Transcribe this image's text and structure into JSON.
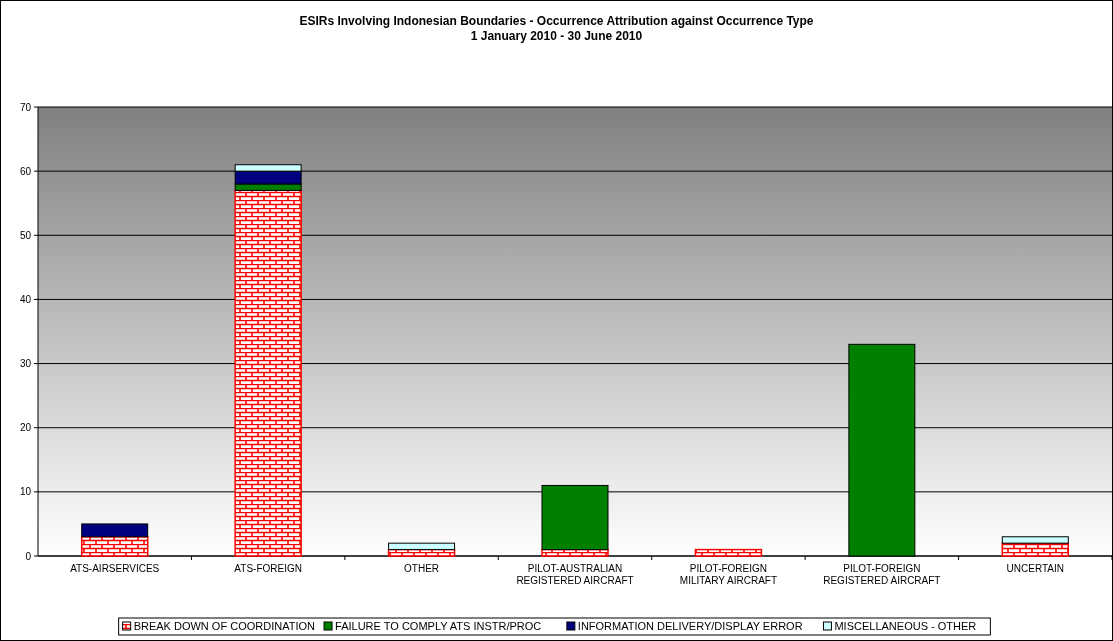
{
  "chart_data": {
    "type": "bar",
    "stacked": true,
    "title": "ESIRs Involving Indonesian Boundaries - Occurrence Attribution against Occurrence Type",
    "subtitle": "1 January 2010 - 30 June 2010",
    "categories": [
      "ATS-AIRSERVICES",
      "ATS-FOREIGN",
      "OTHER",
      "PILOT-AUSTRALIAN REGISTERED AIRCRAFT",
      "PILOT-FOREIGN MILITARY AIRCRAFT",
      "PILOT-FOREIGN REGISTERED AIRCRAFT",
      "UNCERTAIN"
    ],
    "series": [
      {
        "name": "BREAK DOWN OF COORDINATION",
        "color": "#ff0000",
        "values": [
          3,
          57,
          1,
          1,
          1,
          0,
          2
        ]
      },
      {
        "name": "FAILURE TO COMPLY ATS INSTR/PROC",
        "color": "#008000",
        "values": [
          0,
          1,
          0,
          10,
          0,
          33,
          0
        ]
      },
      {
        "name": "INFORMATION DELIVERY/DISPLAY ERROR",
        "color": "#000080",
        "values": [
          2,
          2,
          0,
          0,
          0,
          0,
          0
        ]
      },
      {
        "name": "MISCELLANEOUS - OTHER",
        "color": "#ccffff",
        "values": [
          0,
          1,
          1,
          0,
          0,
          0,
          1
        ]
      }
    ],
    "ylim": [
      0,
      70
    ],
    "yticks": [
      0,
      10,
      20,
      30,
      40,
      50,
      60,
      70
    ],
    "grid": "y",
    "legend": "bottom"
  }
}
